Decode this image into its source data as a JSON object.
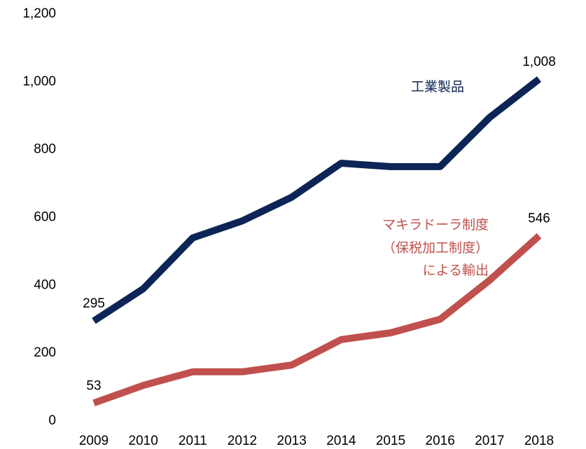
{
  "chart_data": {
    "type": "line",
    "categories": [
      "2009",
      "2010",
      "2011",
      "2012",
      "2013",
      "2014",
      "2015",
      "2016",
      "2017",
      "2018"
    ],
    "series": [
      {
        "name": "工業製品",
        "color": "#0d2456",
        "values": [
          295,
          390,
          540,
          590,
          660,
          760,
          750,
          750,
          895,
          1008
        ],
        "value_labels": [
          "295",
          null,
          null,
          null,
          null,
          null,
          null,
          null,
          null,
          "1,008"
        ]
      },
      {
        "name": "マキラドーラ制度\n（保税加工制度）\nによる輸出",
        "color": "#c0504d",
        "values": [
          53,
          105,
          145,
          145,
          165,
          240,
          260,
          300,
          415,
          546
        ],
        "value_labels": [
          "53",
          null,
          null,
          null,
          null,
          null,
          null,
          null,
          null,
          "546"
        ]
      }
    ],
    "ylim": [
      0,
      1200
    ],
    "yticks": [
      0,
      200,
      400,
      600,
      800,
      {
        "value": 1000,
        "label": "1,000"
      },
      {
        "value": 1200,
        "label": "1,200"
      }
    ],
    "grid": false
  }
}
